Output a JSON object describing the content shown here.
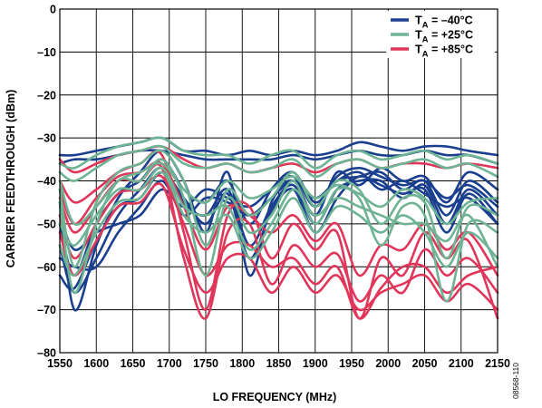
{
  "chart_data": {
    "type": "line",
    "xlabel": "LO FREQUENCY (MHz)",
    "ylabel": "CARRIER FEEDTHROUGH (dBm)",
    "xlim": [
      1550,
      2150
    ],
    "ylim": [
      -80,
      0
    ],
    "x_ticks": [
      "1550",
      "1600",
      "1650",
      "1700",
      "1750",
      "1800",
      "1850",
      "1900",
      "1950",
      "2000",
      "2050",
      "2100",
      "2150"
    ],
    "y_ticks": [
      "0",
      "–10",
      "–20",
      "–30",
      "–40",
      "–50",
      "–60",
      "–70",
      "–80"
    ],
    "grid": true,
    "legend_position": "top-right",
    "figure_id": "08568-110",
    "series": [
      {
        "name": "TA = –40°C",
        "legend_main": "T",
        "legend_sub": "A",
        "legend_rest": " = –40°C",
        "color": "#1a3f8f",
        "x": [
          1550,
          1570,
          1600,
          1630,
          1660,
          1690,
          1720,
          1750,
          1780,
          1810,
          1840,
          1870,
          1900,
          1930,
          1960,
          1990,
          2020,
          2050,
          2080,
          2110,
          2150
        ],
        "curves": [
          [
            -34,
            -34,
            -33,
            -32,
            -31,
            -30,
            -33,
            -33,
            -34,
            -33,
            -34,
            -33,
            -34,
            -33,
            -31,
            -32,
            -33,
            -32,
            -32,
            -33,
            -34
          ],
          [
            -36,
            -35,
            -35,
            -34,
            -33,
            -33,
            -34,
            -35,
            -35,
            -35,
            -35,
            -34,
            -35,
            -34,
            -33,
            -34,
            -34,
            -33,
            -34,
            -34,
            -36
          ],
          [
            -45,
            -70,
            -55,
            -44,
            -38,
            -33,
            -40,
            -52,
            -38,
            -62,
            -45,
            -40,
            -48,
            -38,
            -41,
            -37,
            -40,
            -39,
            -45,
            -38,
            -42
          ],
          [
            -50,
            -62,
            -50,
            -43,
            -40,
            -35,
            -42,
            -45,
            -40,
            -50,
            -42,
            -38,
            -45,
            -40,
            -39,
            -38,
            -42,
            -40,
            -48,
            -40,
            -45
          ],
          [
            -55,
            -66,
            -58,
            -48,
            -42,
            -37,
            -45,
            -48,
            -42,
            -55,
            -46,
            -41,
            -50,
            -42,
            -40,
            -40,
            -44,
            -41,
            -50,
            -42,
            -48
          ],
          [
            -58,
            -60,
            -60,
            -52,
            -46,
            -40,
            -48,
            -44,
            -45,
            -48,
            -44,
            -40,
            -44,
            -40,
            -38,
            -42,
            -40,
            -43,
            -46,
            -44,
            -50
          ],
          [
            -48,
            -56,
            -52,
            -50,
            -48,
            -42,
            -46,
            -42,
            -44,
            -46,
            -42,
            -39,
            -46,
            -39,
            -37,
            -39,
            -41,
            -40,
            -44,
            -41,
            -46
          ],
          [
            -62,
            -65,
            -54,
            -46,
            -44,
            -38,
            -44,
            -50,
            -43,
            -58,
            -47,
            -42,
            -52,
            -44,
            -39,
            -41,
            -43,
            -42,
            -52,
            -43,
            -50
          ]
        ]
      },
      {
        "name": "TA = +25°C",
        "legend_main": "T",
        "legend_sub": "A",
        "legend_rest": " = +25°C",
        "color": "#6db394",
        "x": [
          1550,
          1570,
          1600,
          1630,
          1660,
          1690,
          1720,
          1750,
          1780,
          1810,
          1840,
          1870,
          1900,
          1930,
          1960,
          1990,
          2020,
          2050,
          2080,
          2110,
          2150
        ],
        "curves": [
          [
            -36,
            -37,
            -34,
            -32,
            -31,
            -30,
            -33,
            -34,
            -34,
            -36,
            -34,
            -33,
            -37,
            -34,
            -33,
            -35,
            -34,
            -33,
            -35,
            -34,
            -36
          ],
          [
            -38,
            -40,
            -37,
            -34,
            -33,
            -32,
            -36,
            -37,
            -36,
            -38,
            -37,
            -35,
            -39,
            -36,
            -35,
            -37,
            -36,
            -35,
            -37,
            -36,
            -39
          ],
          [
            -42,
            -60,
            -45,
            -38,
            -36,
            -33,
            -40,
            -55,
            -42,
            -48,
            -44,
            -38,
            -46,
            -40,
            -42,
            -50,
            -44,
            -45,
            -58,
            -46,
            -48
          ],
          [
            -45,
            -66,
            -50,
            -40,
            -40,
            -35,
            -44,
            -62,
            -44,
            -52,
            -48,
            -40,
            -50,
            -42,
            -44,
            -55,
            -46,
            -48,
            -68,
            -50,
            -52
          ],
          [
            -50,
            -55,
            -48,
            -42,
            -42,
            -37,
            -46,
            -48,
            -46,
            -56,
            -50,
            -42,
            -48,
            -44,
            -46,
            -48,
            -50,
            -50,
            -54,
            -48,
            -60
          ],
          [
            -40,
            -50,
            -46,
            -40,
            -38,
            -36,
            -42,
            -45,
            -40,
            -44,
            -42,
            -39,
            -44,
            -41,
            -43,
            -46,
            -42,
            -44,
            -50,
            -45,
            -44
          ],
          [
            -55,
            -62,
            -52,
            -45,
            -44,
            -38,
            -48,
            -52,
            -48,
            -58,
            -52,
            -44,
            -52,
            -46,
            -48,
            -52,
            -48,
            -52,
            -60,
            -52,
            -58
          ]
        ]
      },
      {
        "name": "TA = +85°C",
        "legend_main": "T",
        "legend_sub": "A",
        "legend_rest": " = +85°C",
        "color": "#e0365a",
        "x": [
          1550,
          1570,
          1600,
          1630,
          1660,
          1690,
          1720,
          1750,
          1780,
          1810,
          1840,
          1870,
          1900,
          1930,
          1960,
          1990,
          2020,
          2050,
          2080,
          2110,
          2150
        ],
        "curves": [
          [
            -35,
            -38,
            -36,
            -34,
            -33,
            -32,
            -35,
            -37,
            -36,
            -38,
            -37,
            -36,
            -38,
            -36,
            -35,
            -37,
            -36,
            -36,
            -37,
            -36,
            -37
          ],
          [
            -40,
            -45,
            -42,
            -38,
            -36,
            -34,
            -52,
            -70,
            -48,
            -46,
            -58,
            -50,
            -56,
            -52,
            -72,
            -58,
            -62,
            -52,
            -58,
            -54,
            -72
          ],
          [
            -44,
            -52,
            -46,
            -40,
            -40,
            -37,
            -58,
            -72,
            -52,
            -50,
            -64,
            -55,
            -60,
            -57,
            -68,
            -62,
            -66,
            -56,
            -62,
            -58,
            -66
          ],
          [
            -48,
            -58,
            -50,
            -43,
            -42,
            -39,
            -50,
            -62,
            -55,
            -55,
            -60,
            -58,
            -64,
            -60,
            -72,
            -65,
            -60,
            -60,
            -66,
            -62,
            -60
          ],
          [
            -42,
            -50,
            -44,
            -39,
            -38,
            -36,
            -46,
            -56,
            -46,
            -48,
            -52,
            -48,
            -54,
            -50,
            -62,
            -55,
            -56,
            -50,
            -56,
            -52,
            -62
          ],
          [
            -52,
            -62,
            -54,
            -46,
            -45,
            -41,
            -56,
            -66,
            -58,
            -58,
            -66,
            -60,
            -66,
            -62,
            -70,
            -66,
            -64,
            -62,
            -68,
            -64,
            -70
          ]
        ]
      }
    ]
  }
}
